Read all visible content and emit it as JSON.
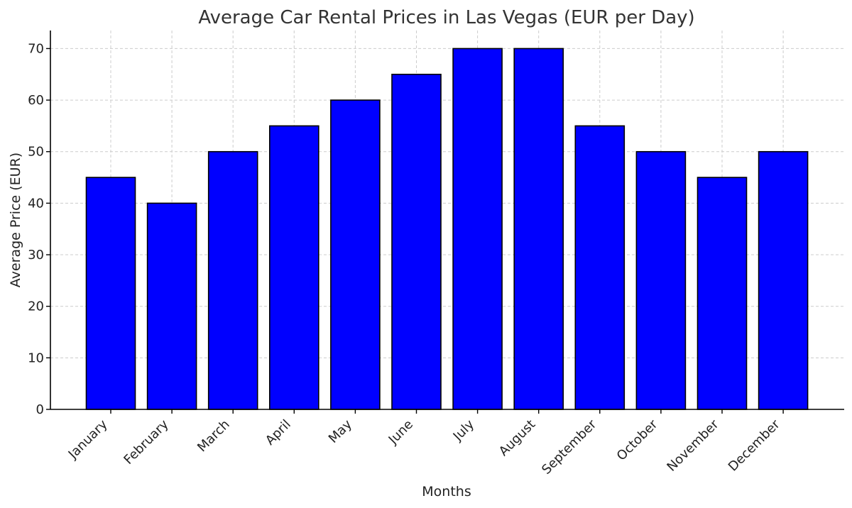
{
  "chart_data": {
    "type": "bar",
    "title": "Average Car Rental Prices in Las Vegas (EUR per Day)",
    "xlabel": "Months",
    "ylabel": "Average Price (EUR)",
    "categories": [
      "January",
      "February",
      "March",
      "April",
      "May",
      "June",
      "July",
      "August",
      "September",
      "October",
      "November",
      "December"
    ],
    "values": [
      45,
      40,
      50,
      55,
      60,
      65,
      70,
      70,
      55,
      50,
      45,
      50
    ],
    "ylim": [
      0,
      73.5
    ],
    "yticks": [
      0,
      10,
      20,
      30,
      40,
      50,
      60,
      70
    ],
    "grid": true,
    "bar_color": "#0000ff",
    "edge_color": "#000000"
  }
}
